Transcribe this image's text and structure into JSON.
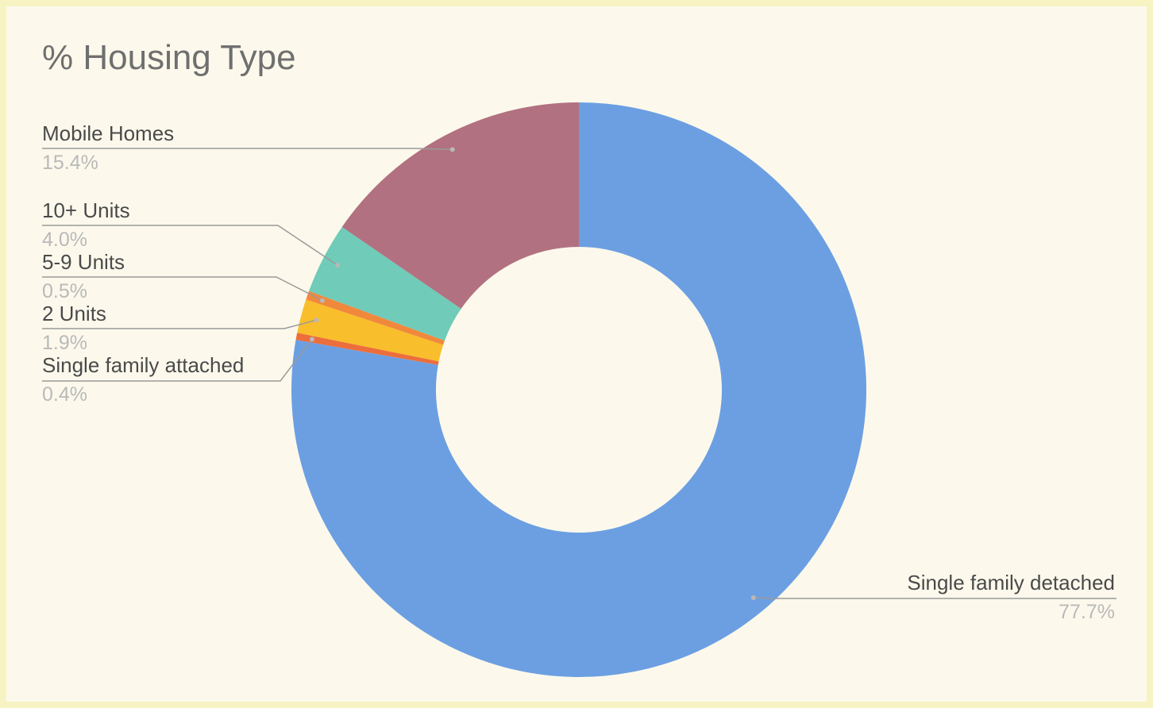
{
  "chart_data": {
    "type": "pie",
    "donut": true,
    "title": "% Housing Type",
    "slices": [
      {
        "label": "Single family detached",
        "value": 77.7,
        "display": "77.7%",
        "color": "#6c9fe2"
      },
      {
        "label": "Single family attached",
        "value": 0.4,
        "display": "0.4%",
        "color": "#ec6e3c"
      },
      {
        "label": "2 Units",
        "value": 1.9,
        "display": "1.9%",
        "color": "#f8be2b"
      },
      {
        "label": "5-9 Units",
        "value": 0.5,
        "display": "0.5%",
        "color": "#f0893c"
      },
      {
        "label": "10+ Units",
        "value": 4.0,
        "display": "4.0%",
        "color": "#70cbb9"
      },
      {
        "label": "Mobile Homes",
        "value": 15.4,
        "display": "15.4%",
        "color": "#b27180"
      }
    ]
  }
}
